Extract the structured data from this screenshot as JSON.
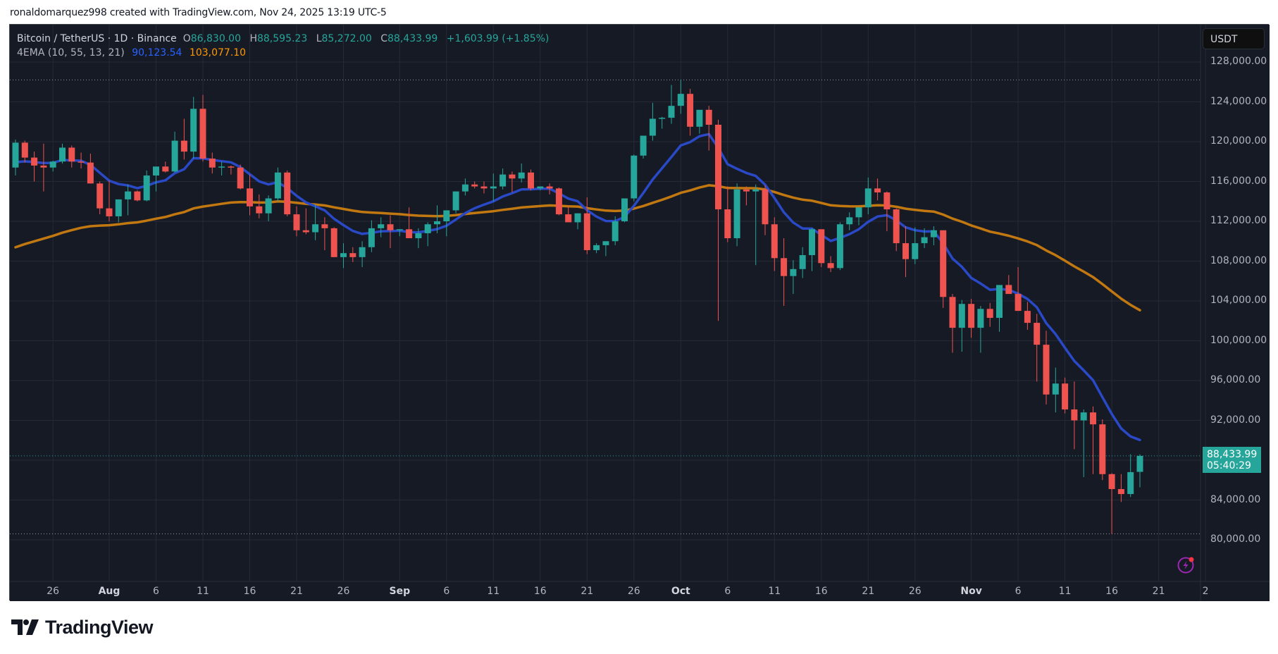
{
  "watermark": "ronaldomarquez998 created with TradingView.com, Nov 24, 2025 13:19 UTC-5",
  "legend": {
    "symbol": "Bitcoin / TetherUS · 1D · Binance",
    "open_label": "O",
    "open": "86,830.00",
    "high_label": "H",
    "high": "88,595.23",
    "low_label": "L",
    "low": "85,272.00",
    "close_label": "C",
    "close": "88,433.99",
    "change": "+1,603.99 (+1.85%)",
    "indicator": "4EMA (10, 55, 13, 21)",
    "ema_fast": "90,123.54",
    "ema_slow": "103,077.10"
  },
  "currency_button": "USDT",
  "price_tag": {
    "price": "88,433.99",
    "countdown": "05:40:29"
  },
  "colors": {
    "background": "#161a25",
    "grid": "#252a36",
    "up": "#26a69a",
    "down": "#ef5350",
    "ema_fast": "#2a49c7",
    "ema_slow": "#c27810",
    "axis_text": "#b2b5be"
  },
  "logo_text": "TradingView",
  "chart_data": {
    "type": "candlestick",
    "title": "Bitcoin / TetherUS · 1D · Binance",
    "xlabel": "",
    "ylabel": "USDT",
    "ylim": [
      77000,
      131000
    ],
    "grid": true,
    "y_ticks": [
      128000,
      124000,
      120000,
      116000,
      112000,
      108000,
      104000,
      100000,
      96000,
      92000,
      88000,
      84000,
      80000
    ],
    "y_tick_labels": [
      "128,000.00",
      "124,000.00",
      "120,000.00",
      "116,000.00",
      "112,000.00",
      "108,000.00",
      "104,000.00",
      "100,000.00",
      "96,000.00",
      "92,000.00",
      "88,000.00",
      "84,000.00",
      "80,000.00"
    ],
    "x_tick_labels": [
      {
        "label": "26",
        "day": -6,
        "month": false
      },
      {
        "label": "Aug",
        "day": 0,
        "month": true
      },
      {
        "label": "6",
        "day": 5,
        "month": false
      },
      {
        "label": "11",
        "day": 10,
        "month": false
      },
      {
        "label": "16",
        "day": 15,
        "month": false
      },
      {
        "label": "21",
        "day": 20,
        "month": false
      },
      {
        "label": "26",
        "day": 25,
        "month": false
      },
      {
        "label": "Sep",
        "day": 31,
        "month": true
      },
      {
        "label": "6",
        "day": 36,
        "month": false
      },
      {
        "label": "11",
        "day": 41,
        "month": false
      },
      {
        "label": "16",
        "day": 46,
        "month": false
      },
      {
        "label": "21",
        "day": 51,
        "month": false
      },
      {
        "label": "26",
        "day": 56,
        "month": false
      },
      {
        "label": "Oct",
        "day": 61,
        "month": true
      },
      {
        "label": "6",
        "day": 66,
        "month": false
      },
      {
        "label": "11",
        "day": 71,
        "month": false
      },
      {
        "label": "16",
        "day": 76,
        "month": false
      },
      {
        "label": "21",
        "day": 81,
        "month": false
      },
      {
        "label": "26",
        "day": 86,
        "month": false
      },
      {
        "label": "Nov",
        "day": 92,
        "month": true
      },
      {
        "label": "6",
        "day": 97,
        "month": false
      },
      {
        "label": "11",
        "day": 102,
        "month": false
      },
      {
        "label": "16",
        "day": 107,
        "month": false
      },
      {
        "label": "21",
        "day": 112,
        "month": false
      },
      {
        "label": "2",
        "day": 117,
        "month": false
      }
    ],
    "first_day_offset": -10,
    "ohlc": [
      [
        117400,
        120200,
        116600,
        119900
      ],
      [
        119900,
        120100,
        117900,
        118400
      ],
      [
        118400,
        119000,
        116000,
        117600
      ],
      [
        117600,
        119800,
        115000,
        117400
      ],
      [
        117400,
        118100,
        117000,
        118000
      ],
      [
        118000,
        119800,
        117800,
        119400
      ],
      [
        119400,
        119600,
        117400,
        118000
      ],
      [
        118000,
        118900,
        117300,
        117900
      ],
      [
        117900,
        118800,
        115800,
        115800
      ],
      [
        115800,
        116000,
        112700,
        113300
      ],
      [
        113300,
        116100,
        112000,
        112500
      ],
      [
        112500,
        114000,
        111900,
        114200
      ],
      [
        114200,
        115700,
        112600,
        115000
      ],
      [
        115000,
        115100,
        114000,
        114100
      ],
      [
        114100,
        117100,
        114000,
        116600
      ],
      [
        116600,
        117200,
        115000,
        117500
      ],
      [
        117500,
        118000,
        116900,
        117000
      ],
      [
        117000,
        121000,
        116900,
        120100
      ],
      [
        120100,
        122300,
        118200,
        119000
      ],
      [
        119000,
        124500,
        118300,
        123300
      ],
      [
        123300,
        124700,
        118000,
        118300
      ],
      [
        118300,
        118900,
        116800,
        117400
      ],
      [
        117400,
        118000,
        116600,
        117500
      ],
      [
        117500,
        117600,
        116700,
        117400
      ],
      [
        117400,
        117700,
        115200,
        115300
      ],
      [
        115300,
        116700,
        112600,
        113500
      ],
      [
        113500,
        114700,
        112300,
        112800
      ],
      [
        112800,
        114600,
        112000,
        114300
      ],
      [
        114300,
        117400,
        114000,
        116900
      ],
      [
        116900,
        117100,
        112500,
        112700
      ],
      [
        112700,
        113500,
        110500,
        111100
      ],
      [
        111100,
        113300,
        110700,
        110900
      ],
      [
        110900,
        113700,
        110100,
        111700
      ],
      [
        111700,
        112400,
        109100,
        111300
      ],
      [
        111300,
        111400,
        108400,
        108400
      ],
      [
        108400,
        109800,
        107300,
        108800
      ],
      [
        108800,
        109400,
        107900,
        108400
      ],
      [
        108400,
        110000,
        107400,
        109400
      ],
      [
        109400,
        112100,
        108900,
        111300
      ],
      [
        111300,
        112400,
        110400,
        111700
      ],
      [
        111700,
        112600,
        109300,
        111100
      ],
      [
        111100,
        111200,
        110500,
        111200
      ],
      [
        111200,
        113400,
        110300,
        110300
      ],
      [
        110300,
        111300,
        109300,
        110800
      ],
      [
        110800,
        111900,
        109500,
        111700
      ],
      [
        111700,
        113600,
        110800,
        112000
      ],
      [
        112000,
        113000,
        110500,
        113100
      ],
      [
        113100,
        114800,
        112800,
        115000
      ],
      [
        115000,
        116300,
        114600,
        115700
      ],
      [
        115700,
        116000,
        115300,
        115500
      ],
      [
        115500,
        116000,
        114800,
        115300
      ],
      [
        115300,
        116800,
        114000,
        115500
      ],
      [
        115500,
        117300,
        115200,
        116700
      ],
      [
        116700,
        117000,
        114900,
        116300
      ],
      [
        116300,
        117800,
        115900,
        116900
      ],
      [
        116900,
        117200,
        115100,
        115300
      ],
      [
        115300,
        115500,
        115100,
        115500
      ],
      [
        115500,
        115800,
        114700,
        115300
      ],
      [
        115300,
        115400,
        112600,
        112700
      ],
      [
        112700,
        113600,
        112000,
        111900
      ],
      [
        111900,
        112800,
        111200,
        112800
      ],
      [
        112800,
        114400,
        108700,
        109100
      ],
      [
        109100,
        109800,
        108800,
        109600
      ],
      [
        109600,
        110000,
        108500,
        110000
      ],
      [
        110000,
        112500,
        109600,
        112000
      ],
      [
        112000,
        114100,
        111900,
        114300
      ],
      [
        114300,
        118700,
        114000,
        118600
      ],
      [
        118600,
        120400,
        118300,
        120600
      ],
      [
        120600,
        123900,
        120100,
        122300
      ],
      [
        122300,
        122500,
        121300,
        122400
      ],
      [
        122400,
        125700,
        121800,
        123600
      ],
      [
        123600,
        126200,
        122800,
        124800
      ],
      [
        124800,
        125300,
        120600,
        121500
      ],
      [
        121500,
        123000,
        120800,
        123200
      ],
      [
        123200,
        123600,
        119100,
        121700
      ],
      [
        121700,
        122200,
        102000,
        113200
      ],
      [
        113200,
        115500,
        109900,
        110300
      ],
      [
        110300,
        115800,
        109500,
        115200
      ],
      [
        115200,
        115500,
        113600,
        115000
      ],
      [
        115000,
        115700,
        107600,
        115200
      ],
      [
        115200,
        115600,
        110600,
        111700
      ],
      [
        111700,
        112400,
        107000,
        108300
      ],
      [
        108300,
        110300,
        103500,
        106500
      ],
      [
        106500,
        108100,
        104700,
        107200
      ],
      [
        107200,
        109400,
        106300,
        108600
      ],
      [
        108600,
        111300,
        107000,
        111200
      ],
      [
        111200,
        111200,
        107400,
        107800
      ],
      [
        107800,
        108500,
        106900,
        107300
      ],
      [
        107300,
        111900,
        107100,
        111700
      ],
      [
        111700,
        112900,
        111100,
        112400
      ],
      [
        112400,
        113400,
        111600,
        113400
      ],
      [
        113400,
        116400,
        112700,
        115300
      ],
      [
        115300,
        116300,
        114100,
        114900
      ],
      [
        114900,
        115000,
        111000,
        113200
      ],
      [
        113200,
        113300,
        109000,
        109800
      ],
      [
        109800,
        111500,
        106400,
        108200
      ],
      [
        108200,
        111400,
        107700,
        109800
      ],
      [
        109800,
        111300,
        109300,
        110400
      ],
      [
        110400,
        111500,
        109600,
        111100
      ],
      [
        111100,
        111000,
        103300,
        104400
      ],
      [
        104400,
        104700,
        98800,
        101300
      ],
      [
        101300,
        104100,
        98900,
        103700
      ],
      [
        103700,
        104200,
        100300,
        101300
      ],
      [
        101300,
        103500,
        98800,
        103200
      ],
      [
        103200,
        103800,
        101400,
        102300
      ],
      [
        102300,
        105500,
        100900,
        105600
      ],
      [
        105600,
        106600,
        105000,
        104700
      ],
      [
        104700,
        107400,
        103400,
        103000
      ],
      [
        103000,
        103900,
        101100,
        101800
      ],
      [
        101800,
        102700,
        95900,
        99600
      ],
      [
        99600,
        101000,
        93600,
        94600
      ],
      [
        94600,
        97300,
        92800,
        95700
      ],
      [
        95700,
        96300,
        92700,
        93100
      ],
      [
        93100,
        95900,
        89100,
        92000
      ],
      [
        92000,
        93100,
        86300,
        92800
      ],
      [
        92800,
        93400,
        86600,
        91600
      ],
      [
        91600,
        92100,
        86000,
        86600
      ],
      [
        86600,
        86700,
        80600,
        85100
      ],
      [
        85100,
        86600,
        83800,
        84600
      ],
      [
        84600,
        88600,
        84300,
        86800
      ],
      [
        86830,
        88595,
        85272,
        88434
      ]
    ],
    "ema_fast": {
      "name": "EMA 10",
      "period": 10,
      "last": 90123.54,
      "seed": 117500
    },
    "ema_slow": {
      "name": "EMA 55",
      "period": 55,
      "last": 103077.1,
      "seed": 109000
    },
    "last_price": 88433.99,
    "high_dotted_line": 126200,
    "low_dotted_line": 80600
  }
}
